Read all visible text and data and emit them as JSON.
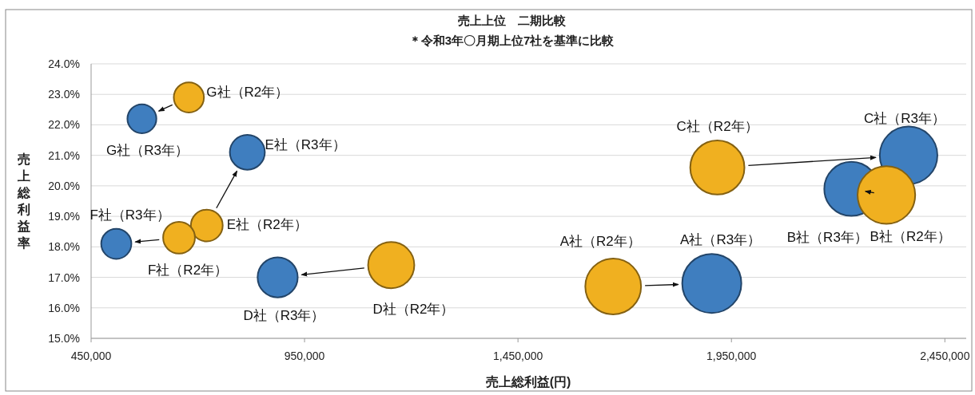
{
  "chart_data": {
    "type": "bubble",
    "title": "売上上位　二期比較",
    "subtitle": "＊令和3年〇月期上位7社を基準に比較",
    "xlabel": "売上総利益(円)",
    "ylabel": "売上総利益率",
    "xlim": [
      450000,
      2500000
    ],
    "xticks": [
      {
        "value": 450000,
        "label": "450,000"
      },
      {
        "value": 950000,
        "label": "950,000"
      },
      {
        "value": 1450000,
        "label": "1,450,000"
      },
      {
        "value": 1950000,
        "label": "1,950,000"
      },
      {
        "value": 2450000,
        "label": "2,450,000"
      }
    ],
    "ylim": [
      15,
      24
    ],
    "yticks": [
      {
        "value": 15,
        "label": "15.0%"
      },
      {
        "value": 16,
        "label": "16.0%"
      },
      {
        "value": 17,
        "label": "17.0%"
      },
      {
        "value": 18,
        "label": "18.0%"
      },
      {
        "value": 19,
        "label": "19.0%"
      },
      {
        "value": 20,
        "label": "20.0%"
      },
      {
        "value": 21,
        "label": "21.0%"
      },
      {
        "value": 22,
        "label": "22.0%"
      },
      {
        "value": 23,
        "label": "23.0%"
      },
      {
        "value": 24,
        "label": "24.0%"
      }
    ],
    "grid": "y",
    "series": [
      {
        "color": "#3f7ebf",
        "x": [
          1904000,
          2231000,
          2365000,
          887000,
          816000,
          509000,
          569000
        ],
        "values": [
          16.8,
          19.9,
          21.0,
          17.0,
          21.1,
          18.1,
          22.2
        ],
        "sizes": [
          1,
          0.84,
          0.95,
          0.46,
          0.35,
          0.26,
          0.24
        ],
        "value_labels": [
          "A社（R3年）",
          "B社（R3年）",
          "C社（R3年）",
          "D社（R3年）",
          "E社（R3年）",
          "F社（R3年）",
          "G社（R3年）"
        ]
      },
      {
        "color": "#f0b020",
        "x": [
          1673000,
          2313000,
          1917000,
          1153000,
          721000,
          656000,
          679000
        ],
        "values": [
          16.7,
          19.7,
          20.6,
          17.4,
          18.7,
          18.3,
          22.9
        ],
        "sizes": [
          0.89,
          0.95,
          0.84,
          0.61,
          0.29,
          0.29,
          0.26
        ],
        "value_labels": [
          "A社（R2年）",
          "B社（R2年）",
          "C社（R2年）",
          "D社（R2年）",
          "E社（R2年）",
          "F社（R2年）",
          "G社（R2年）"
        ]
      }
    ]
  }
}
